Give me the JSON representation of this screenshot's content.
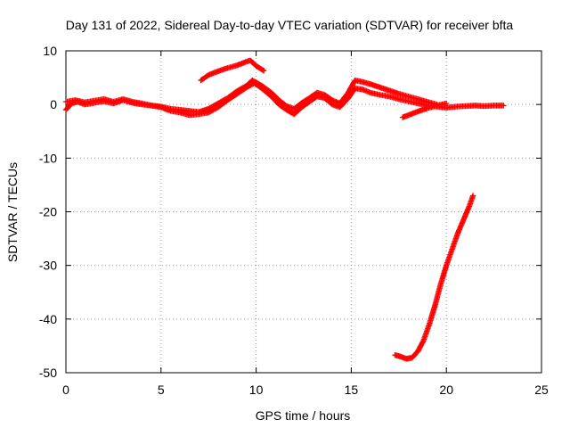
{
  "chart_data": {
    "type": "scatter",
    "title": "Day 131 of 2022, Sidereal Day-to-day VTEC variation (SDTVAR) for receiver bfta",
    "xlabel": "GPS time / hours",
    "ylabel": "SDTVAR / TECUs",
    "xlim": [
      0,
      25
    ],
    "ylim": [
      -50,
      10
    ],
    "x_ticks": [
      0,
      5,
      10,
      15,
      20,
      25
    ],
    "y_ticks": [
      10,
      0,
      -10,
      -20,
      -30,
      -40,
      -50
    ],
    "x_tick_labels": [
      "0",
      "5",
      "10",
      "15",
      "20",
      "25"
    ],
    "y_tick_labels": [
      "10",
      "0",
      "-10",
      "-20",
      "-30",
      "-40",
      "-50"
    ],
    "grid": true,
    "marker": "plus",
    "color": "#ff0000",
    "series": [
      {
        "name": "arc-main-1",
        "points": [
          [
            0.0,
            -1.0
          ],
          [
            0.3,
            0.2
          ],
          [
            0.6,
            0.5
          ],
          [
            1.0,
            0.0
          ],
          [
            1.5,
            0.3
          ],
          [
            2.0,
            0.6
          ],
          [
            2.5,
            0.2
          ],
          [
            3.0,
            0.8
          ],
          [
            3.5,
            0.3
          ],
          [
            4.0,
            0.0
          ],
          [
            4.5,
            -0.2
          ],
          [
            5.0,
            -0.5
          ],
          [
            5.5,
            -1.2
          ],
          [
            6.0,
            -1.5
          ],
          [
            6.5,
            -2.0
          ],
          [
            7.0,
            -1.8
          ],
          [
            7.5,
            -1.5
          ],
          [
            8.0,
            -0.5
          ],
          [
            8.5,
            0.8
          ],
          [
            9.0,
            2.0
          ],
          [
            9.5,
            3.2
          ],
          [
            9.9,
            4.0
          ],
          [
            10.3,
            3.0
          ],
          [
            10.8,
            1.5
          ],
          [
            11.2,
            0.0
          ],
          [
            11.6,
            -1.0
          ],
          [
            12.0,
            -1.8
          ],
          [
            12.4,
            -0.5
          ],
          [
            12.8,
            0.5
          ],
          [
            13.2,
            1.5
          ],
          [
            13.6,
            1.2
          ],
          [
            14.0,
            0.0
          ],
          [
            14.4,
            -0.5
          ],
          [
            14.8,
            1.0
          ],
          [
            15.2,
            3.0
          ],
          [
            15.6,
            2.8
          ],
          [
            16.0,
            2.2
          ],
          [
            16.5,
            1.8
          ],
          [
            17.0,
            1.5
          ],
          [
            17.5,
            1.0
          ],
          [
            18.0,
            0.6
          ],
          [
            18.5,
            0.2
          ],
          [
            19.0,
            -0.2
          ],
          [
            19.5,
            -0.4
          ],
          [
            20.0,
            -0.6
          ],
          [
            20.5,
            -0.4
          ],
          [
            21.0,
            -0.3
          ],
          [
            21.5,
            -0.2
          ],
          [
            22.0,
            -0.3
          ],
          [
            22.5,
            -0.2
          ],
          [
            23.0,
            -0.2
          ]
        ]
      },
      {
        "name": "arc-main-2",
        "points": [
          [
            0.0,
            0.5
          ],
          [
            0.5,
            0.8
          ],
          [
            1.0,
            0.4
          ],
          [
            1.5,
            0.7
          ],
          [
            2.0,
            1.0
          ],
          [
            2.5,
            0.5
          ],
          [
            3.0,
            1.0
          ],
          [
            3.5,
            0.5
          ],
          [
            4.0,
            0.2
          ],
          [
            4.5,
            -0.2
          ],
          [
            5.0,
            -0.4
          ],
          [
            5.5,
            -0.8
          ],
          [
            6.0,
            -1.0
          ],
          [
            6.5,
            -1.2
          ],
          [
            7.0,
            -1.4
          ],
          [
            7.5,
            -0.8
          ],
          [
            8.0,
            0.2
          ],
          [
            8.5,
            1.2
          ],
          [
            9.0,
            2.5
          ],
          [
            9.5,
            3.5
          ],
          [
            9.8,
            4.5
          ],
          [
            10.3,
            3.5
          ],
          [
            10.8,
            2.2
          ],
          [
            11.2,
            0.8
          ],
          [
            11.6,
            -0.3
          ],
          [
            12.0,
            -0.8
          ],
          [
            12.4,
            0.3
          ],
          [
            12.8,
            1.2
          ],
          [
            13.2,
            2.2
          ],
          [
            13.6,
            1.8
          ],
          [
            14.0,
            0.8
          ],
          [
            14.4,
            0.2
          ],
          [
            14.8,
            2.0
          ],
          [
            15.2,
            4.5
          ],
          [
            15.6,
            4.2
          ],
          [
            16.0,
            3.8
          ],
          [
            16.5,
            3.2
          ],
          [
            17.0,
            2.6
          ],
          [
            17.5,
            2.0
          ],
          [
            18.0,
            1.5
          ],
          [
            18.5,
            1.0
          ],
          [
            19.0,
            0.5
          ],
          [
            19.5,
            0.0
          ]
        ]
      },
      {
        "name": "arc-upper",
        "points": [
          [
            7.1,
            4.5
          ],
          [
            7.5,
            5.5
          ],
          [
            8.0,
            6.2
          ],
          [
            8.5,
            6.8
          ],
          [
            9.0,
            7.3
          ],
          [
            9.5,
            8.0
          ],
          [
            9.7,
            8.2
          ],
          [
            10.0,
            7.2
          ],
          [
            10.4,
            6.3
          ]
        ]
      },
      {
        "name": "arc-return",
        "points": [
          [
            17.7,
            -2.4
          ],
          [
            18.0,
            -2.0
          ],
          [
            18.5,
            -1.3
          ],
          [
            19.0,
            -0.7
          ],
          [
            19.5,
            -0.2
          ],
          [
            20.0,
            0.2
          ]
        ]
      },
      {
        "name": "arc-descent",
        "points": [
          [
            17.3,
            -46.7
          ],
          [
            17.6,
            -47.0
          ],
          [
            17.9,
            -47.4
          ],
          [
            18.2,
            -47.2
          ],
          [
            18.5,
            -46.0
          ],
          [
            18.8,
            -44.0
          ],
          [
            19.1,
            -41.0
          ],
          [
            19.4,
            -37.5
          ],
          [
            19.7,
            -33.5
          ],
          [
            20.0,
            -30.0
          ],
          [
            20.3,
            -27.0
          ],
          [
            20.6,
            -24.0
          ],
          [
            20.9,
            -21.5
          ],
          [
            21.2,
            -19.0
          ],
          [
            21.4,
            -17.0
          ]
        ]
      }
    ]
  }
}
